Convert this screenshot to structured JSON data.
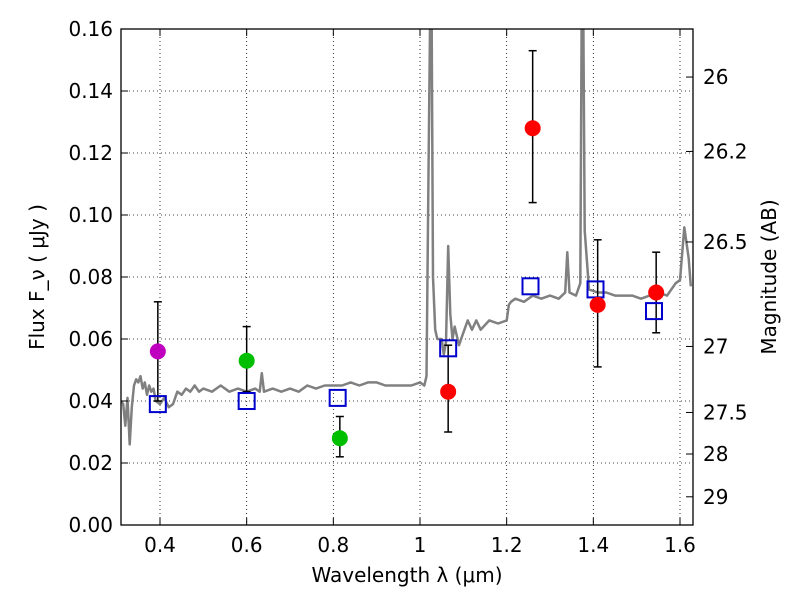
{
  "chart_data": {
    "type": "scatter",
    "title": "",
    "xlabel": "Wavelength  λ (μm)",
    "ylabel": "Flux  F_ν  ( μJy )",
    "ylabel_right": "Magnitude (AB)",
    "xlim": [
      0.31,
      1.63
    ],
    "ylim": [
      0,
      0.16
    ],
    "grid": true,
    "x_ticks": [
      0.4,
      0.6,
      0.8,
      1.0,
      1.2,
      1.4,
      1.6
    ],
    "x_tick_labels": [
      "0.4",
      "0.6",
      "0.8",
      "1",
      "1.2",
      "1.4",
      "1.6"
    ],
    "y_ticks": [
      0.0,
      0.02,
      0.04,
      0.06,
      0.08,
      0.1,
      0.12,
      0.14,
      0.16
    ],
    "y_tick_labels": [
      "0.00",
      "0.02",
      "0.04",
      "0.06",
      "0.08",
      "0.10",
      "0.12",
      "0.14",
      "0.16"
    ],
    "right_ticks": [
      {
        "label": "26",
        "flux": 0.1445
      },
      {
        "label": "26.2",
        "flux": 0.1205
      },
      {
        "label": "26.5",
        "flux": 0.0913
      },
      {
        "label": "27",
        "flux": 0.0576
      },
      {
        "label": "27.5",
        "flux": 0.0363
      },
      {
        "label": "28",
        "flux": 0.0229
      },
      {
        "label": "29",
        "flux": 0.0091
      }
    ],
    "model_spectrum": {
      "name": "SED model",
      "color": "#808080",
      "points": [
        [
          0.31,
          0.04
        ],
        [
          0.315,
          0.039
        ],
        [
          0.32,
          0.032
        ],
        [
          0.325,
          0.041
        ],
        [
          0.33,
          0.026
        ],
        [
          0.335,
          0.038
        ],
        [
          0.34,
          0.045
        ],
        [
          0.345,
          0.047
        ],
        [
          0.35,
          0.046
        ],
        [
          0.355,
          0.048
        ],
        [
          0.36,
          0.044
        ],
        [
          0.365,
          0.046
        ],
        [
          0.37,
          0.042
        ],
        [
          0.375,
          0.045
        ],
        [
          0.38,
          0.043
        ],
        [
          0.385,
          0.044
        ],
        [
          0.39,
          0.04
        ],
        [
          0.4,
          0.039
        ],
        [
          0.41,
          0.041
        ],
        [
          0.42,
          0.038
        ],
        [
          0.43,
          0.039
        ],
        [
          0.44,
          0.043
        ],
        [
          0.45,
          0.042
        ],
        [
          0.46,
          0.044
        ],
        [
          0.47,
          0.043
        ],
        [
          0.48,
          0.045
        ],
        [
          0.49,
          0.043
        ],
        [
          0.5,
          0.044
        ],
        [
          0.52,
          0.043
        ],
        [
          0.54,
          0.045
        ],
        [
          0.56,
          0.043
        ],
        [
          0.58,
          0.044
        ],
        [
          0.6,
          0.043
        ],
        [
          0.62,
          0.044
        ],
        [
          0.63,
          0.043
        ],
        [
          0.635,
          0.049
        ],
        [
          0.64,
          0.043
        ],
        [
          0.66,
          0.044
        ],
        [
          0.68,
          0.043
        ],
        [
          0.7,
          0.044
        ],
        [
          0.72,
          0.043
        ],
        [
          0.74,
          0.045
        ],
        [
          0.76,
          0.044
        ],
        [
          0.78,
          0.045
        ],
        [
          0.8,
          0.045
        ],
        [
          0.82,
          0.045
        ],
        [
          0.84,
          0.046
        ],
        [
          0.86,
          0.045
        ],
        [
          0.88,
          0.046
        ],
        [
          0.9,
          0.046
        ],
        [
          0.92,
          0.045
        ],
        [
          0.94,
          0.045
        ],
        [
          0.96,
          0.045
        ],
        [
          0.98,
          0.045
        ],
        [
          1.0,
          0.046
        ],
        [
          1.01,
          0.045
        ],
        [
          1.015,
          0.048
        ],
        [
          1.02,
          0.12
        ],
        [
          1.023,
          0.16
        ],
        [
          1.027,
          0.16
        ],
        [
          1.03,
          0.08
        ],
        [
          1.035,
          0.063
        ],
        [
          1.04,
          0.06
        ],
        [
          1.05,
          0.06
        ],
        [
          1.055,
          0.055
        ],
        [
          1.06,
          0.059
        ],
        [
          1.065,
          0.09
        ],
        [
          1.07,
          0.068
        ],
        [
          1.075,
          0.06
        ],
        [
          1.08,
          0.064
        ],
        [
          1.09,
          0.058
        ],
        [
          1.1,
          0.062
        ],
        [
          1.11,
          0.066
        ],
        [
          1.12,
          0.063
        ],
        [
          1.13,
          0.066
        ],
        [
          1.14,
          0.063
        ],
        [
          1.16,
          0.066
        ],
        [
          1.18,
          0.065
        ],
        [
          1.2,
          0.066
        ],
        [
          1.205,
          0.071
        ],
        [
          1.21,
          0.072
        ],
        [
          1.22,
          0.073
        ],
        [
          1.24,
          0.072
        ],
        [
          1.26,
          0.074
        ],
        [
          1.28,
          0.073
        ],
        [
          1.3,
          0.074
        ],
        [
          1.32,
          0.073
        ],
        [
          1.335,
          0.075
        ],
        [
          1.34,
          0.088
        ],
        [
          1.345,
          0.075
        ],
        [
          1.36,
          0.074
        ],
        [
          1.37,
          0.078
        ],
        [
          1.373,
          0.16
        ],
        [
          1.377,
          0.16
        ],
        [
          1.38,
          0.095
        ],
        [
          1.39,
          0.076
        ],
        [
          1.41,
          0.075
        ],
        [
          1.43,
          0.075
        ],
        [
          1.45,
          0.074
        ],
        [
          1.47,
          0.074
        ],
        [
          1.49,
          0.074
        ],
        [
          1.51,
          0.073
        ],
        [
          1.53,
          0.074
        ],
        [
          1.55,
          0.075
        ],
        [
          1.57,
          0.074
        ],
        [
          1.59,
          0.078
        ],
        [
          1.6,
          0.079
        ],
        [
          1.61,
          0.096
        ],
        [
          1.62,
          0.086
        ],
        [
          1.625,
          0.077
        ]
      ]
    },
    "model_photometry": {
      "name": "model photometry",
      "marker": "open-square",
      "color": "#0000cc",
      "points": [
        {
          "x": 0.395,
          "y": 0.039
        },
        {
          "x": 0.6,
          "y": 0.04
        },
        {
          "x": 0.81,
          "y": 0.041
        },
        {
          "x": 1.065,
          "y": 0.057
        },
        {
          "x": 1.255,
          "y": 0.077
        },
        {
          "x": 1.405,
          "y": 0.076
        },
        {
          "x": 1.54,
          "y": 0.069
        }
      ]
    },
    "observed": [
      {
        "name": "observed-purple",
        "color": "#bf00bf",
        "points": [
          {
            "x": 0.395,
            "y": 0.056,
            "err_lo": 0.04,
            "err_hi": 0.072
          }
        ]
      },
      {
        "name": "observed-green",
        "color": "#00bf00",
        "points": [
          {
            "x": 0.6,
            "y": 0.053,
            "err_lo": 0.043,
            "err_hi": 0.064
          },
          {
            "x": 0.815,
            "y": 0.028,
            "err_lo": 0.022,
            "err_hi": 0.035
          }
        ]
      },
      {
        "name": "observed-red",
        "color": "#ff0000",
        "points": [
          {
            "x": 1.065,
            "y": 0.043,
            "err_lo": 0.03,
            "err_hi": 0.058
          },
          {
            "x": 1.26,
            "y": 0.128,
            "err_lo": 0.104,
            "err_hi": 0.153
          },
          {
            "x": 1.41,
            "y": 0.071,
            "err_lo": 0.051,
            "err_hi": 0.092
          },
          {
            "x": 1.545,
            "y": 0.075,
            "err_lo": 0.062,
            "err_hi": 0.088
          }
        ]
      }
    ]
  }
}
